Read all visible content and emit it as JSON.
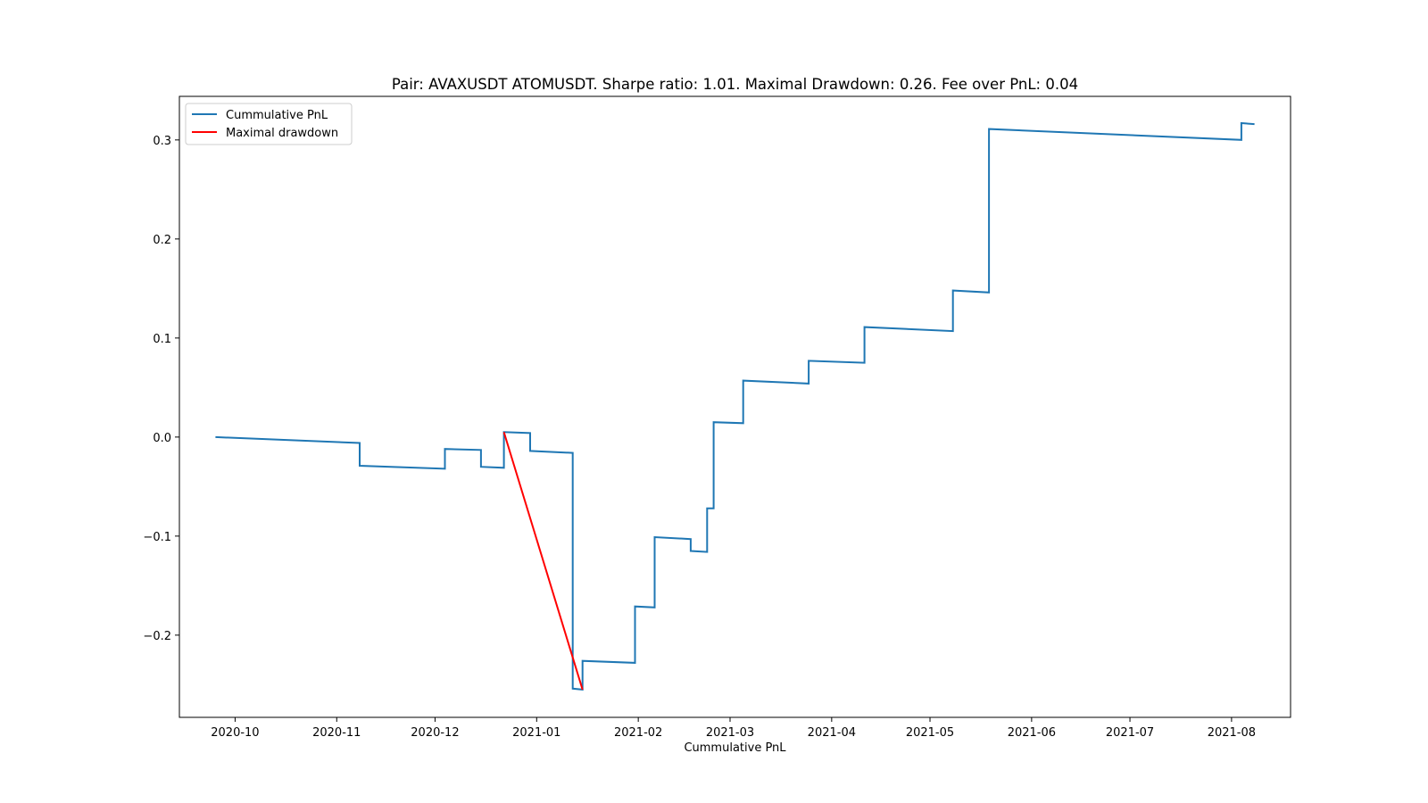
{
  "chart_data": {
    "type": "line",
    "title": "Pair: AVAXUSDT ATOMUSDT. Sharpe ratio: 1.01. Maximal Drawdown: 0.26. Fee over PnL: 0.04",
    "xlabel": "Cummulative PnL",
    "ylabel": "",
    "x_ticks": [
      "2020-10",
      "2020-11",
      "2020-12",
      "2021-01",
      "2021-02",
      "2021-03",
      "2021-04",
      "2021-05",
      "2021-06",
      "2021-07",
      "2021-08"
    ],
    "y_ticks": [
      0.3,
      0.2,
      0.1,
      0.0,
      -0.1,
      -0.2
    ],
    "y_tick_labels": [
      "0.3",
      "0.2",
      "0.1",
      "0.0",
      "−0.1",
      "−0.2"
    ],
    "xlim": [
      "2020-09-14",
      "2021-08-19"
    ],
    "ylim": [
      -0.283,
      0.344
    ],
    "legend_position": "upper left",
    "grid": false,
    "series": [
      {
        "name": "Cummulative PnL",
        "color": "#1f77b4",
        "points": [
          [
            "2020-09-25",
            0.0
          ],
          [
            "2020-11-08",
            -0.006
          ],
          [
            "2020-11-08",
            -0.029
          ],
          [
            "2020-12-04",
            -0.032
          ],
          [
            "2020-12-04",
            -0.012
          ],
          [
            "2020-12-15",
            -0.013
          ],
          [
            "2020-12-15",
            -0.03
          ],
          [
            "2020-12-22",
            -0.031
          ],
          [
            "2020-12-22",
            0.005
          ],
          [
            "2020-12-30",
            0.004
          ],
          [
            "2020-12-30",
            -0.014
          ],
          [
            "2021-01-12",
            -0.016
          ],
          [
            "2021-01-12",
            -0.254
          ],
          [
            "2021-01-15",
            -0.255
          ],
          [
            "2021-01-15",
            -0.226
          ],
          [
            "2021-01-31",
            -0.228
          ],
          [
            "2021-01-31",
            -0.171
          ],
          [
            "2021-02-06",
            -0.172
          ],
          [
            "2021-02-06",
            -0.101
          ],
          [
            "2021-02-17",
            -0.103
          ],
          [
            "2021-02-17",
            -0.115
          ],
          [
            "2021-02-22",
            -0.116
          ],
          [
            "2021-02-22",
            -0.072
          ],
          [
            "2021-02-24",
            -0.072
          ],
          [
            "2021-02-24",
            0.015
          ],
          [
            "2021-03-05",
            0.014
          ],
          [
            "2021-03-05",
            0.057
          ],
          [
            "2021-03-25",
            0.054
          ],
          [
            "2021-03-25",
            0.077
          ],
          [
            "2021-04-11",
            0.075
          ],
          [
            "2021-04-11",
            0.111
          ],
          [
            "2021-05-08",
            0.107
          ],
          [
            "2021-05-08",
            0.148
          ],
          [
            "2021-05-19",
            0.146
          ],
          [
            "2021-05-19",
            0.311
          ],
          [
            "2021-08-04",
            0.3
          ],
          [
            "2021-08-04",
            0.317
          ],
          [
            "2021-08-08",
            0.316
          ]
        ]
      },
      {
        "name": "Maximal drawdown",
        "color": "#ff0000",
        "points": [
          [
            "2020-12-22",
            0.005
          ],
          [
            "2021-01-15",
            -0.255
          ]
        ]
      }
    ]
  }
}
